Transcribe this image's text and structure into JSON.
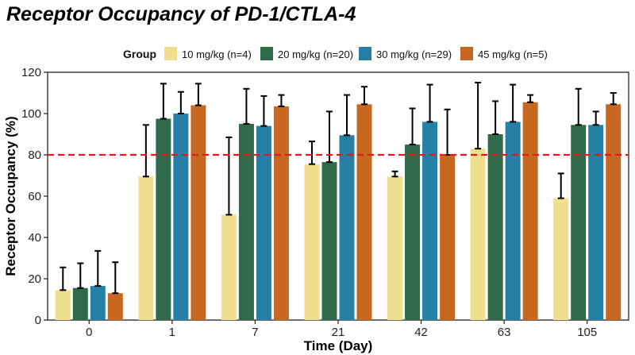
{
  "title": "Receptor Occupancy of PD-1/CTLA-4",
  "chart_data": {
    "type": "bar",
    "title": "Receptor Occupancy of PD-1/CTLA-4",
    "xlabel": "Time (Day)",
    "ylabel": "Receptor Occupancy (%)",
    "ylim": [
      0,
      120
    ],
    "yticks": [
      0,
      20,
      40,
      60,
      80,
      100,
      120
    ],
    "categories": [
      "0",
      "1",
      "7",
      "21",
      "42",
      "63",
      "105"
    ],
    "legend_title": "Group",
    "legend_position": "top",
    "grid": false,
    "reference_line": {
      "y": 80,
      "style": "dashed",
      "color": "#e31a1c"
    },
    "series": [
      {
        "name": "10 mg/kg (n=4)",
        "color": "#f0df8f",
        "values": [
          14.5,
          69.5,
          51,
          75.5,
          69.5,
          83,
          59
        ],
        "error_upper": [
          25.5,
          94.5,
          88.5,
          86.5,
          72,
          115,
          71
        ]
      },
      {
        "name": "20 mg/kg (n=20)",
        "color": "#2f6b4a",
        "values": [
          15.5,
          97.5,
          95,
          76.5,
          85,
          90,
          94.5
        ],
        "error_upper": [
          27.5,
          114.5,
          112,
          101,
          102.5,
          106,
          112
        ]
      },
      {
        "name": "30 mg/kg (n=29)",
        "color": "#2680a6",
        "values": [
          16.5,
          100,
          94,
          89.5,
          96,
          96,
          94.5
        ],
        "error_upper": [
          33.5,
          110.5,
          108.5,
          109,
          114,
          114,
          101
        ]
      },
      {
        "name": "45 mg/kg (n=5)",
        "color": "#c8671f",
        "values": [
          13,
          104,
          103.5,
          104.5,
          80,
          105.5,
          104.5
        ],
        "error_upper": [
          28,
          114.5,
          109,
          113,
          102,
          109,
          110
        ]
      }
    ]
  }
}
